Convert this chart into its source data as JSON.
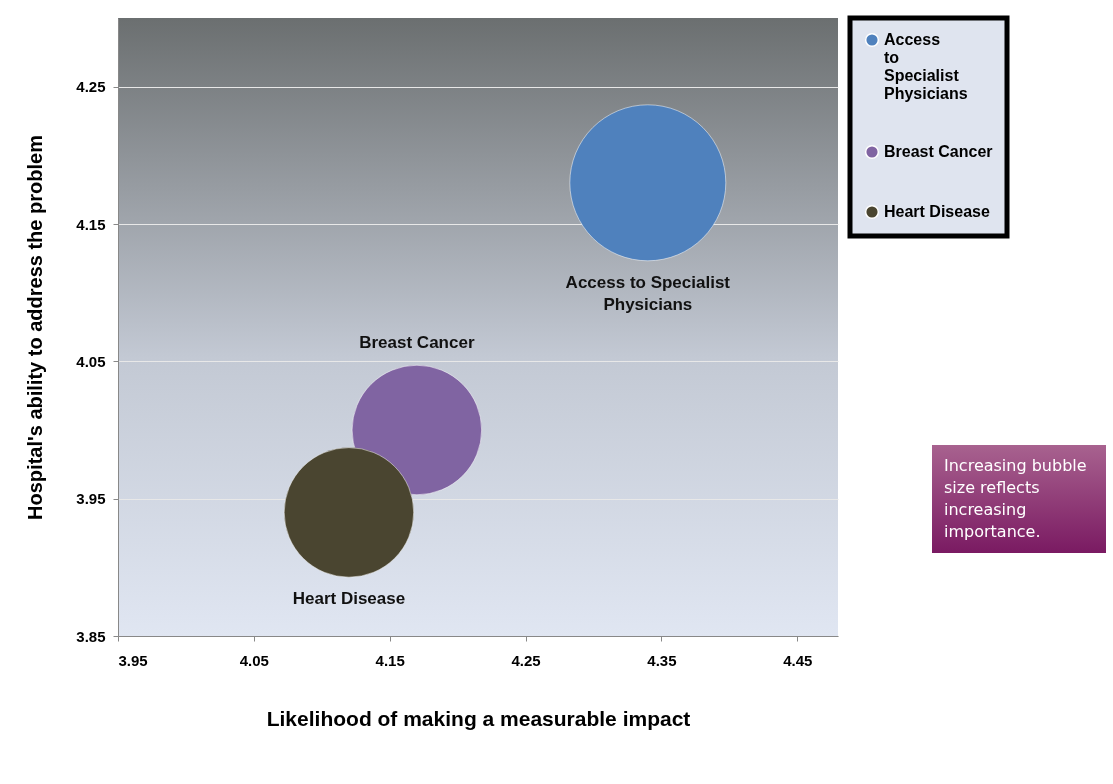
{
  "chart_data": {
    "type": "bubble",
    "xlabel": "Likelihood of making a measurable impact",
    "ylabel": "Hospital's ability to address the problem",
    "xlim": [
      3.95,
      4.48
    ],
    "xticks": [
      3.95,
      4.05,
      4.15,
      4.25,
      4.35,
      4.45
    ],
    "ylim": [
      3.85,
      4.3
    ],
    "yticks": [
      3.85,
      3.95,
      4.05,
      4.15,
      4.25
    ],
    "series": [
      {
        "name": "Access to Specialist Physicians",
        "color": "#4f81bd",
        "x": [
          4.34
        ],
        "values": [
          4.18
        ],
        "sizes": [
          1
        ]
      },
      {
        "name": "Breast Cancer",
        "color": "#8064a2",
        "x": [
          4.17
        ],
        "values": [
          4.0
        ],
        "sizes": [
          0.69
        ]
      },
      {
        "name": "Heart Disease",
        "color": "#4a4530",
        "x": [
          4.12
        ],
        "values": [
          3.94
        ],
        "sizes": [
          0.69
        ]
      }
    ],
    "grid": "y",
    "legend": "right",
    "marker": "circle",
    "annotations": [
      "Increasing bubble size reflects increasing importance."
    ]
  }
}
